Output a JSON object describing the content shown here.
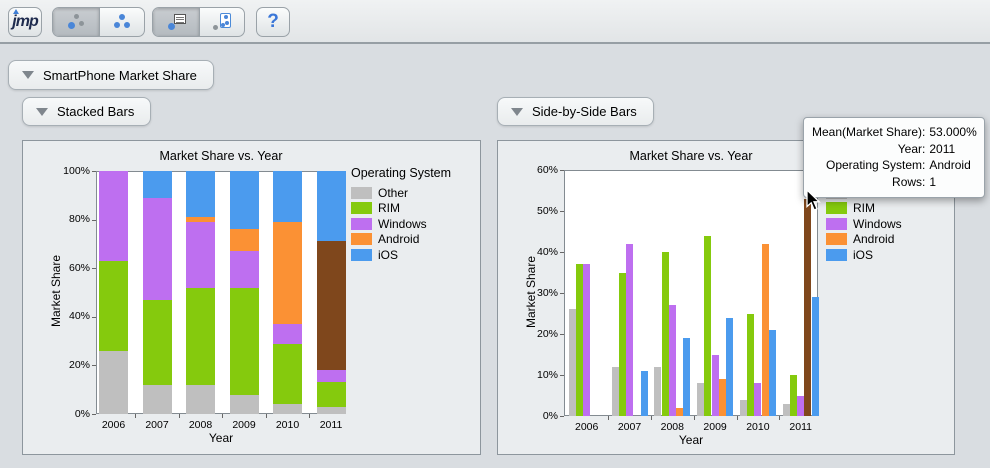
{
  "toolbar": {
    "jmp_label": "jmp",
    "help_label": "?",
    "icons": [
      "select-points-icon",
      "select-all-points-icon",
      "label-points-icon",
      "brush-points-icon",
      "help-icon"
    ]
  },
  "outline": {
    "root_title": "SmartPhone Market Share",
    "left_title": "Stacked Bars",
    "right_title": "Side-by-Side Bars"
  },
  "legend": {
    "title": "Operating System",
    "items": [
      {
        "label": "Other",
        "color": "#BFBFBF"
      },
      {
        "label": "RIM",
        "color": "#85CA0D"
      },
      {
        "label": "Windows",
        "color": "#BE6FF0"
      },
      {
        "label": "Android",
        "color": "#FB9134"
      },
      {
        "label": "iOS",
        "color": "#4B9BEE"
      }
    ]
  },
  "selection": {
    "series": "Android",
    "category": "2011",
    "highlight_color": "#7F471C"
  },
  "tooltip": {
    "rows": [
      {
        "label": "Mean(Market Share):",
        "value": "53.000%"
      },
      {
        "label": "Year:",
        "value": "2011"
      },
      {
        "label": "Operating System:",
        "value": "Android"
      },
      {
        "label": "Rows:",
        "value": "1"
      }
    ]
  },
  "chart_data": [
    {
      "type": "bar",
      "variant": "stacked",
      "title": "Market Share vs. Year",
      "xlabel": "Year",
      "ylabel": "Market Share",
      "categories": [
        "2006",
        "2007",
        "2008",
        "2009",
        "2010",
        "2011"
      ],
      "series": [
        {
          "name": "Other",
          "color": "#BFBFBF",
          "values": [
            26,
            12,
            12,
            8,
            4,
            3
          ]
        },
        {
          "name": "RIM",
          "color": "#85CA0D",
          "values": [
            37,
            35,
            40,
            44,
            25,
            10
          ]
        },
        {
          "name": "Windows",
          "color": "#BE6FF0",
          "values": [
            37,
            42,
            27,
            15,
            8,
            5
          ]
        },
        {
          "name": "Android",
          "color": "#FB9134",
          "values": [
            0,
            0,
            2,
            9,
            42,
            53
          ]
        },
        {
          "name": "iOS",
          "color": "#4B9BEE",
          "values": [
            0,
            11,
            19,
            24,
            21,
            29
          ]
        }
      ],
      "ylim": [
        0,
        100
      ],
      "yticks": [
        0,
        20,
        40,
        60,
        80,
        100
      ],
      "ytick_suffix": "%",
      "grid": false,
      "legend_position": "right"
    },
    {
      "type": "bar",
      "variant": "grouped",
      "title": "Market Share vs. Year",
      "xlabel": "Year",
      "ylabel": "Market Share",
      "categories": [
        "2006",
        "2007",
        "2008",
        "2009",
        "2010",
        "2011"
      ],
      "series": [
        {
          "name": "Other",
          "color": "#BFBFBF",
          "values": [
            26,
            12,
            12,
            8,
            4,
            3
          ]
        },
        {
          "name": "RIM",
          "color": "#85CA0D",
          "values": [
            37,
            35,
            40,
            44,
            25,
            10
          ]
        },
        {
          "name": "Windows",
          "color": "#BE6FF0",
          "values": [
            37,
            42,
            27,
            15,
            8,
            5
          ]
        },
        {
          "name": "Android",
          "color": "#FB9134",
          "values": [
            0,
            0,
            2,
            9,
            42,
            53
          ]
        },
        {
          "name": "iOS",
          "color": "#4B9BEE",
          "values": [
            0,
            11,
            19,
            24,
            21,
            29
          ]
        }
      ],
      "ylim": [
        0,
        60
      ],
      "yticks": [
        0,
        10,
        20,
        30,
        40,
        50,
        60
      ],
      "ytick_suffix": "%",
      "grid": false,
      "legend_position": "right"
    }
  ]
}
